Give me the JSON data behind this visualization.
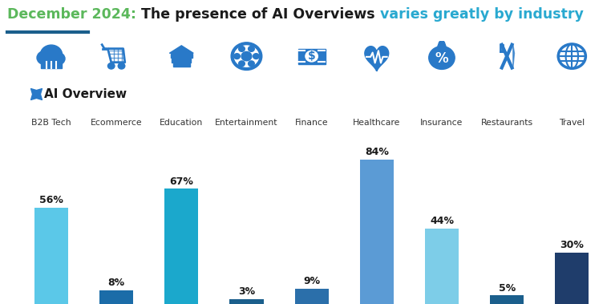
{
  "title_part1": "December 2024: ",
  "title_part2": "The presence of AI Overviews ",
  "title_part3": "varies greatly by industry",
  "categories": [
    "B2B Tech",
    "Ecommerce",
    "Education",
    "Entertainment",
    "Finance",
    "Healthcare",
    "Insurance",
    "Restaurants",
    "Travel"
  ],
  "values": [
    56,
    8,
    67,
    3,
    9,
    84,
    44,
    5,
    30
  ],
  "bar_colors": [
    "#5BC8E8",
    "#1B6CA8",
    "#1BA8CC",
    "#1B5F8C",
    "#2B6FAA",
    "#5B9BD5",
    "#7DCDE8",
    "#1B5F8C",
    "#1F3D6B"
  ],
  "label_color": "#1a1a1a",
  "title_color1": "#5CB85C",
  "title_color2": "#1a1a1a",
  "title_color3": "#29A9D0",
  "underline_color": "#1B5F8C",
  "legend_text": "AI Overview",
  "legend_color": "#2979C8",
  "background_color": "#ffffff",
  "bar_width": 0.52,
  "ylim": [
    0,
    92
  ],
  "figsize": [
    7.62,
    3.79
  ],
  "dpi": 100,
  "icon_labels": [
    "☁",
    "⊞",
    "▣",
    "◎",
    "☷",
    "♥",
    "◎",
    "✶",
    "✈"
  ],
  "title_fontsize": 12.5,
  "label_fontsize": 8.5,
  "pct_fontsize": 9
}
